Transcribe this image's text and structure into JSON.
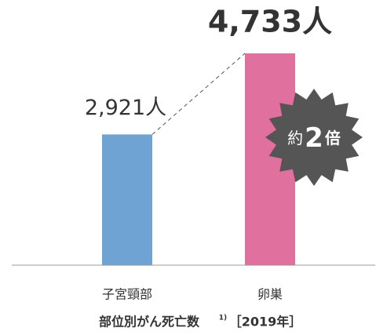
{
  "chart_data": {
    "type": "bar",
    "categories": [
      "子宮頸部",
      "卵巣"
    ],
    "series": [
      {
        "name": null,
        "colors": [
          "#6fa3d4",
          "#e0709e"
        ],
        "values": [
          2921,
          4733
        ],
        "value_labels": [
          "2,921人",
          "4,733人"
        ]
      }
    ],
    "annotation": [
      "約",
      "2",
      "倍"
    ],
    "x_label": "部位別がん死亡数",
    "footnote_mark": "1)",
    "period": "［2019年］"
  }
}
